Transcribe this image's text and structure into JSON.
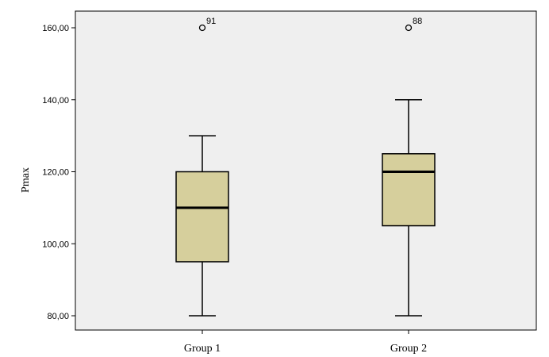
{
  "chart_data": {
    "type": "boxplot",
    "ylabel": "Pmax",
    "xlabel": "",
    "ylim": [
      80,
      160
    ],
    "yticks": [
      80,
      100,
      120,
      140,
      160
    ],
    "ytick_labels": [
      "80,00",
      "100,00",
      "120,00",
      "140,00",
      "160,00"
    ],
    "grid": false,
    "colors": {
      "box_fill": "#d6cf9c",
      "plot_bg": "#efefef",
      "stroke": "#000000"
    },
    "categories": [
      "Group 1",
      "Group 2"
    ],
    "boxes": [
      {
        "category": "Group 1",
        "whisker_low": 80,
        "q1": 95,
        "median": 110,
        "q3": 120,
        "whisker_high": 130,
        "outliers": [
          {
            "value": 160,
            "label": "91"
          }
        ]
      },
      {
        "category": "Group 2",
        "whisker_low": 80,
        "q1": 105,
        "median": 120,
        "q3": 125,
        "whisker_high": 140,
        "outliers": [
          {
            "value": 160,
            "label": "88"
          }
        ]
      }
    ]
  }
}
